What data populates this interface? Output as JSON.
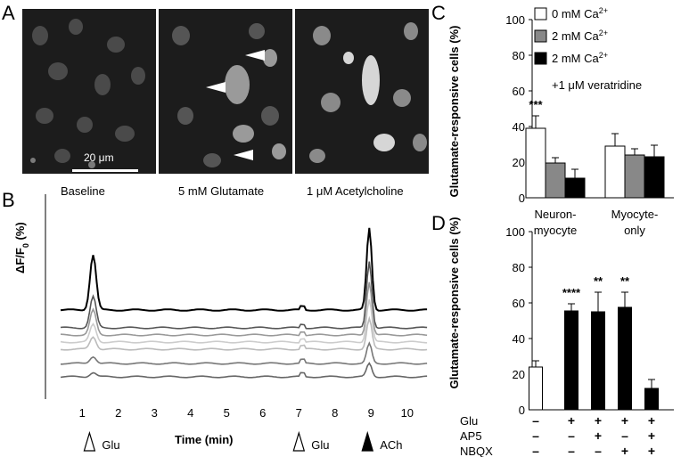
{
  "panels": {
    "a": "A",
    "b": "B",
    "c": "C",
    "d": "D"
  },
  "panel_a": {
    "images": [
      {
        "label": "Baseline"
      },
      {
        "label": "5 mM Glutamate"
      },
      {
        "label": "1 μM Acetylcholine"
      }
    ],
    "scale_bar": "20 μm"
  },
  "panel_b": {
    "ylabel": "ΔF/F",
    "ylabel_sub": "0",
    "ylabel_unit": " (%)",
    "xlabel": "Time (min)",
    "ticks": [
      "1",
      "2",
      "3",
      "4",
      "5",
      "6",
      "7",
      "8",
      "9",
      "10"
    ],
    "stimuli": [
      {
        "label": "Glu",
        "time": 1.2,
        "filled": false
      },
      {
        "label": "Glu",
        "time": 7.0,
        "filled": false
      },
      {
        "label": "ACh",
        "time": 8.9,
        "filled": true
      }
    ]
  },
  "chart_data": [
    {
      "id": "C",
      "type": "bar",
      "ylabel": "Glutamate-responsive cells (%)",
      "ylim": [
        0,
        100
      ],
      "yticks": [
        "0",
        "20",
        "40",
        "60",
        "80",
        "100"
      ],
      "groups": [
        {
          "label_line1": "Neuron-",
          "label_line2": "myocyte"
        },
        {
          "label_line1": "Myocyte-",
          "label_line2": "only"
        }
      ],
      "series": [
        {
          "name": "0 mM Ca",
          "sup": "2+",
          "suffix": "",
          "color": "#ffffff",
          "values": [
            39,
            29
          ],
          "errors": [
            7,
            7
          ]
        },
        {
          "name": "2 mM Ca",
          "sup": "2+",
          "suffix": "",
          "color": "#888888",
          "values": [
            19.5,
            24
          ],
          "errors": [
            3,
            3.5
          ]
        },
        {
          "name": "2 mM Ca",
          "sup": "2+",
          "suffix": "+1 μM veratridine",
          "color": "#000000",
          "values": [
            11,
            23
          ],
          "errors": [
            5,
            6.5
          ]
        }
      ],
      "annotations": [
        {
          "text": "***",
          "group": 0,
          "series": 0
        }
      ]
    },
    {
      "id": "D",
      "type": "bar",
      "ylabel": "Glutamate-responsive cells (%)",
      "ylim": [
        0,
        100
      ],
      "yticks": [
        "0",
        "20",
        "40",
        "60",
        "80",
        "100"
      ],
      "values": [
        24,
        55.5,
        55,
        57.5,
        12
      ],
      "errors": [
        3.5,
        4,
        11,
        8.5,
        5
      ],
      "colors": [
        "#ffffff",
        "#000000",
        "#000000",
        "#000000",
        "#000000"
      ],
      "stars": [
        "",
        "****",
        "**",
        "**",
        ""
      ],
      "conditions": [
        {
          "name": "Glu",
          "marks": [
            "–",
            "+",
            "+",
            "+",
            "+"
          ]
        },
        {
          "name": "AP5",
          "marks": [
            "–",
            "–",
            "+",
            "–",
            "+"
          ]
        },
        {
          "name": "NBQX",
          "marks": [
            "–",
            "–",
            "–",
            "+",
            "+"
          ]
        }
      ]
    }
  ]
}
